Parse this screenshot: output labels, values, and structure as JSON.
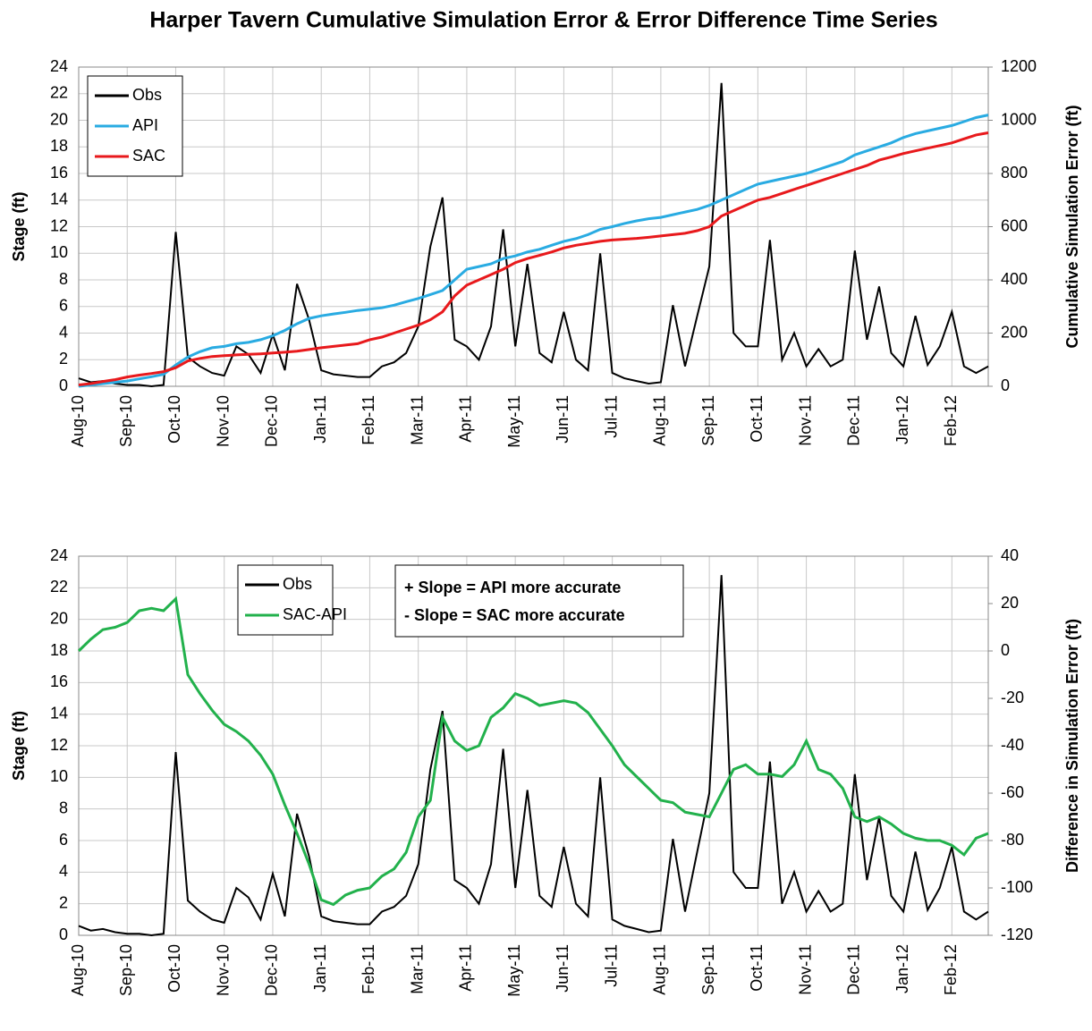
{
  "title": "Harper Tavern Cumulative Simulation Error & Error Difference Time Series",
  "chart_data": [
    {
      "type": "line",
      "y_label": "Stage (ft)",
      "y2_label": "Cumulative Simulation Error (ft)",
      "y2_color": "#7030a0",
      "categories": [
        "Aug-10",
        null,
        null,
        null,
        "Sep-10",
        null,
        null,
        null,
        "Oct-10",
        null,
        null,
        null,
        "Nov-10",
        null,
        null,
        null,
        "Dec-10",
        null,
        null,
        null,
        "Jan-11",
        null,
        null,
        null,
        "Feb-11",
        null,
        null,
        null,
        "Mar-11",
        null,
        null,
        null,
        "Apr-11",
        null,
        null,
        null,
        "May-11",
        null,
        null,
        null,
        "Jun-11",
        null,
        null,
        null,
        "Jul-11",
        null,
        null,
        null,
        "Aug-11",
        null,
        null,
        null,
        "Sep-11",
        null,
        null,
        null,
        "Oct-11",
        null,
        null,
        null,
        "Nov-11",
        null,
        null,
        null,
        "Dec-11",
        null,
        null,
        null,
        "Jan-12",
        null,
        null,
        null,
        "Feb-12",
        null,
        null,
        null
      ],
      "ylim": [
        0,
        24
      ],
      "yticks": [
        0,
        2,
        4,
        6,
        8,
        10,
        12,
        14,
        16,
        18,
        20,
        22,
        24
      ],
      "y2lim": [
        0,
        1200
      ],
      "y2ticks": [
        0,
        200,
        400,
        600,
        800,
        1000,
        1200
      ],
      "grid": true,
      "legend": "upper left",
      "series": [
        {
          "name": "Obs",
          "color": "#000000",
          "values": [
            0.6,
            0.3,
            0.4,
            0.2,
            0.1,
            0.1,
            0.0,
            0.1,
            11.6,
            2.2,
            1.5,
            1.0,
            0.8,
            3.0,
            2.4,
            1.0,
            3.9,
            1.2,
            7.7,
            5.0,
            1.2,
            0.9,
            0.8,
            0.7,
            0.7,
            1.5,
            1.8,
            2.5,
            4.5,
            10.5,
            14.2,
            3.5,
            3.0,
            2.0,
            4.5,
            11.8,
            3.0,
            9.2,
            2.5,
            1.8,
            5.6,
            2.0,
            1.2,
            10.0,
            1.0,
            0.6,
            0.4,
            0.2,
            0.3,
            6.1,
            1.5,
            5.3,
            9.0,
            22.8,
            4.0,
            3.0,
            3.0,
            11.0,
            2.0,
            4.0,
            1.5,
            2.8,
            1.5,
            2.0,
            10.2,
            3.5,
            7.5,
            2.5,
            1.5,
            5.3,
            1.6,
            3.0,
            5.6,
            1.5,
            1.0,
            1.5
          ]
        },
        {
          "name": "API",
          "color": "#29abe2",
          "axis": "y2",
          "values": [
            0,
            5,
            10,
            15,
            20,
            28,
            36,
            45,
            80,
            110,
            130,
            145,
            150,
            160,
            165,
            175,
            190,
            210,
            235,
            255,
            265,
            272,
            278,
            285,
            290,
            295,
            305,
            318,
            330,
            345,
            360,
            400,
            440,
            450,
            460,
            480,
            490,
            505,
            515,
            530,
            545,
            555,
            570,
            590,
            600,
            612,
            622,
            630,
            635,
            645,
            655,
            665,
            680,
            700,
            720,
            740,
            760,
            770,
            780,
            790,
            800,
            815,
            830,
            845,
            870,
            885,
            900,
            915,
            935,
            950,
            960,
            970,
            980,
            995,
            1010,
            1020
          ]
        },
        {
          "name": "SAC",
          "color": "#e8191c",
          "axis": "y2",
          "values": [
            5,
            10,
            18,
            25,
            35,
            42,
            48,
            55,
            70,
            95,
            105,
            112,
            115,
            118,
            120,
            122,
            125,
            128,
            132,
            138,
            145,
            150,
            155,
            160,
            175,
            185,
            200,
            215,
            230,
            250,
            280,
            340,
            380,
            400,
            420,
            440,
            465,
            480,
            492,
            505,
            520,
            530,
            537,
            545,
            550,
            553,
            556,
            560,
            565,
            570,
            575,
            585,
            600,
            640,
            660,
            680,
            700,
            710,
            725,
            740,
            755,
            770,
            785,
            800,
            815,
            830,
            850,
            862,
            875,
            885,
            895,
            905,
            915,
            930,
            945,
            953
          ]
        }
      ]
    },
    {
      "type": "line",
      "y_label": "Stage (ft)",
      "y2_label": "Difference in Simulation Error (ft)",
      "y2_color": "#00b050",
      "categories": [
        "Aug-10",
        null,
        null,
        null,
        "Sep-10",
        null,
        null,
        null,
        "Oct-10",
        null,
        null,
        null,
        "Nov-10",
        null,
        null,
        null,
        "Dec-10",
        null,
        null,
        null,
        "Jan-11",
        null,
        null,
        null,
        "Feb-11",
        null,
        null,
        null,
        "Mar-11",
        null,
        null,
        null,
        "Apr-11",
        null,
        null,
        null,
        "May-11",
        null,
        null,
        null,
        "Jun-11",
        null,
        null,
        null,
        "Jul-11",
        null,
        null,
        null,
        "Aug-11",
        null,
        null,
        null,
        "Sep-11",
        null,
        null,
        null,
        "Oct-11",
        null,
        null,
        null,
        "Nov-11",
        null,
        null,
        null,
        "Dec-11",
        null,
        null,
        null,
        "Jan-12",
        null,
        null,
        null,
        "Feb-12",
        null,
        null,
        null
      ],
      "ylim": [
        0,
        24
      ],
      "yticks": [
        0,
        2,
        4,
        6,
        8,
        10,
        12,
        14,
        16,
        18,
        20,
        22,
        24
      ],
      "y2lim": [
        -120,
        40
      ],
      "y2ticks": [
        -120,
        -100,
        -80,
        -60,
        -40,
        -20,
        0,
        20,
        40
      ],
      "grid": true,
      "legend": "upper center",
      "annotations": [
        "+ Slope = API more accurate",
        "- Slope = SAC more accurate"
      ],
      "annotation_color": "#00b050",
      "series": [
        {
          "name": "Obs",
          "color": "#000000",
          "values": [
            0.6,
            0.3,
            0.4,
            0.2,
            0.1,
            0.1,
            0.0,
            0.1,
            11.6,
            2.2,
            1.5,
            1.0,
            0.8,
            3.0,
            2.4,
            1.0,
            3.9,
            1.2,
            7.7,
            5.0,
            1.2,
            0.9,
            0.8,
            0.7,
            0.7,
            1.5,
            1.8,
            2.5,
            4.5,
            10.5,
            14.2,
            3.5,
            3.0,
            2.0,
            4.5,
            11.8,
            3.0,
            9.2,
            2.5,
            1.8,
            5.6,
            2.0,
            1.2,
            10.0,
            1.0,
            0.6,
            0.4,
            0.2,
            0.3,
            6.1,
            1.5,
            5.3,
            9.0,
            22.8,
            4.0,
            3.0,
            3.0,
            11.0,
            2.0,
            4.0,
            1.5,
            2.8,
            1.5,
            2.0,
            10.2,
            3.5,
            7.5,
            2.5,
            1.5,
            5.3,
            1.6,
            3.0,
            5.6,
            1.5,
            1.0,
            1.5
          ]
        },
        {
          "name": "SAC-API",
          "color": "#22b14c",
          "axis": "y2",
          "values": [
            0,
            5,
            9,
            10,
            12,
            17,
            18,
            17,
            22,
            -10,
            -18,
            -25,
            -31,
            -34,
            -38,
            -44,
            -52,
            -65,
            -77,
            -90,
            -105,
            -107,
            -103,
            -101,
            -100,
            -95,
            -92,
            -85,
            -70,
            -63,
            -28,
            -38,
            -42,
            -40,
            -28,
            -24,
            -18,
            -20,
            -23,
            -22,
            -21,
            -22,
            -26,
            -33,
            -40,
            -48,
            -53,
            -58,
            -63,
            -64,
            -68,
            -69,
            -70,
            -60,
            -50,
            -48,
            -52,
            -52,
            -53,
            -48,
            -38,
            -50,
            -52,
            -58,
            -70,
            -72,
            -70,
            -73,
            -77,
            -79,
            -80,
            -80,
            -82,
            -86,
            -79,
            -77
          ]
        }
      ]
    }
  ]
}
